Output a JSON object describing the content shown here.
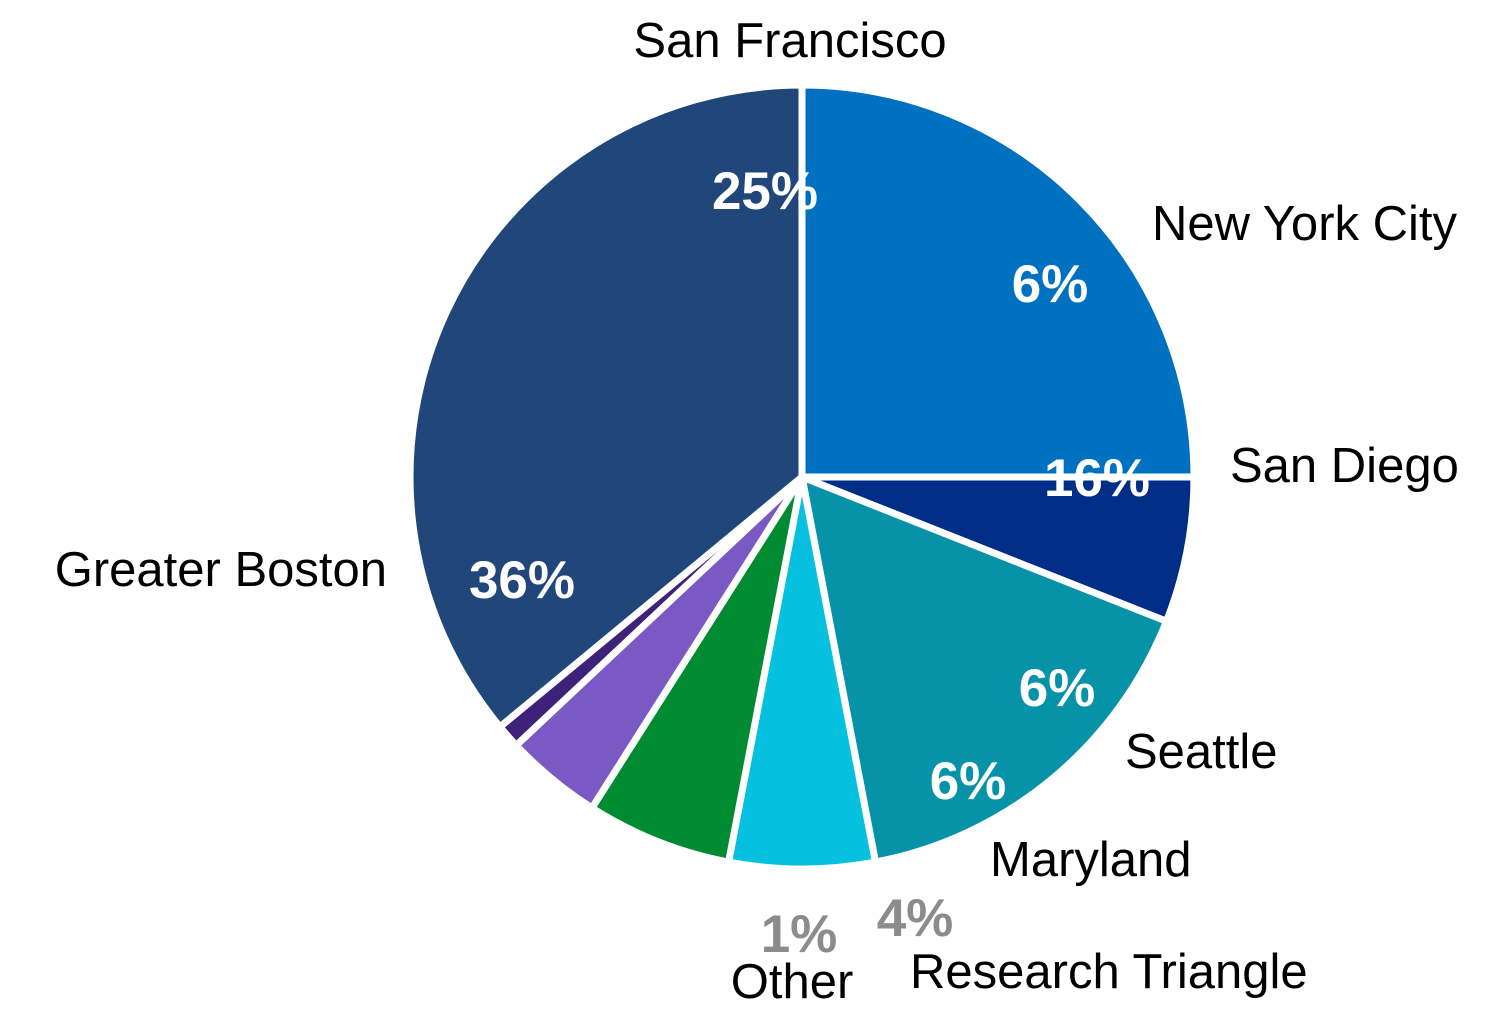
{
  "chart_data": {
    "type": "pie",
    "slices": [
      {
        "label": "San Francisco",
        "value": 25,
        "display": "25%",
        "color": "#0070C0",
        "pct_color": "#FFFFFF"
      },
      {
        "label": "New York City",
        "value": 6,
        "display": "6%",
        "color": "#002D85",
        "pct_color": "#FFFFFF"
      },
      {
        "label": "San Diego",
        "value": 16,
        "display": "16%",
        "color": "#0693A8",
        "pct_color": "#FFFFFF"
      },
      {
        "label": "Seattle",
        "value": 6,
        "display": "6%",
        "color": "#05C0DE",
        "pct_color": "#FFFFFF"
      },
      {
        "label": "Maryland",
        "value": 6,
        "display": "6%",
        "color": "#008A32",
        "pct_color": "#FFFFFF"
      },
      {
        "label": "Research Triangle",
        "value": 4,
        "display": "4%",
        "color": "#7B59C4",
        "pct_color": "#8C8C8C"
      },
      {
        "label": "Other",
        "value": 1,
        "display": "1%",
        "color": "#3E2178",
        "pct_color": "#8C8C8C"
      },
      {
        "label": "Greater Boston",
        "value": 36,
        "display": "36%",
        "color": "#21477A",
        "pct_color": "#FFFFFF"
      }
    ],
    "slice_border_color": "#FFFFFF"
  }
}
